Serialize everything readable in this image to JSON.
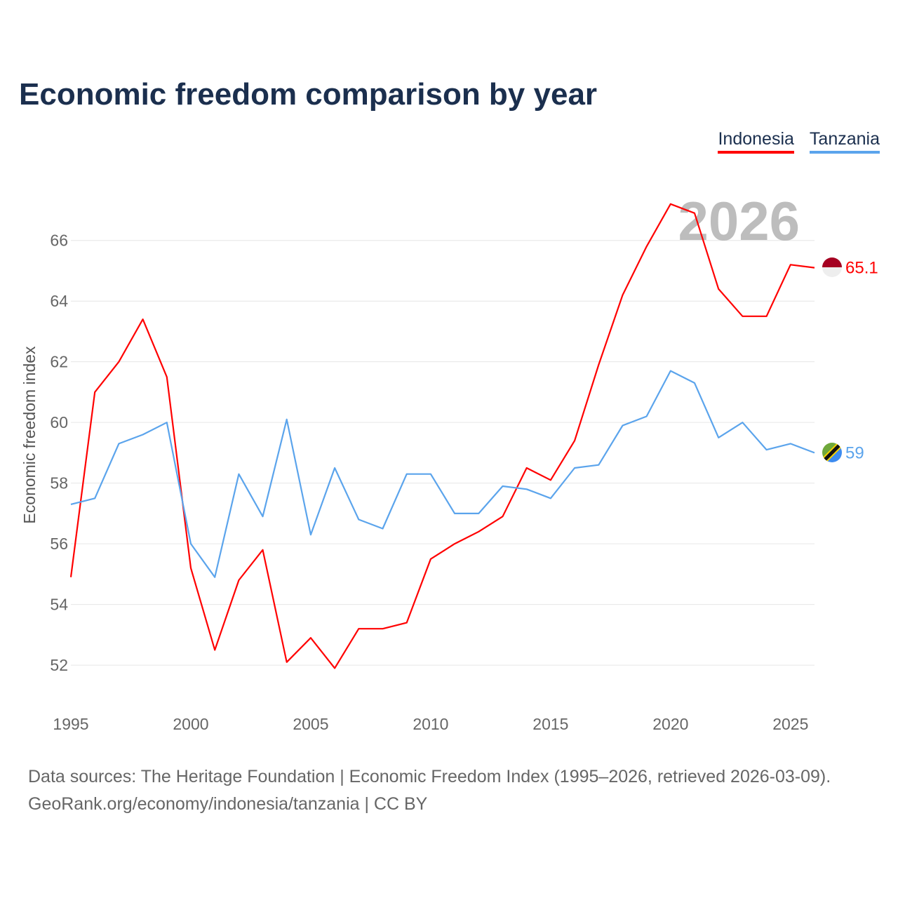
{
  "chart_data": {
    "type": "line",
    "title": "Economic freedom comparison by year",
    "xlabel": "",
    "ylabel": "Economic freedom index",
    "year_overlay": "2026",
    "x": [
      1995,
      1996,
      1997,
      1998,
      1999,
      2000,
      2001,
      2002,
      2003,
      2004,
      2005,
      2006,
      2007,
      2008,
      2009,
      2010,
      2011,
      2012,
      2013,
      2014,
      2015,
      2016,
      2017,
      2018,
      2019,
      2020,
      2021,
      2022,
      2023,
      2024,
      2025,
      2026
    ],
    "xticks": [
      1995,
      2000,
      2005,
      2010,
      2015,
      2020,
      2025
    ],
    "yticks": [
      52,
      54,
      56,
      58,
      60,
      62,
      64,
      66
    ],
    "xlim": [
      1995,
      2026
    ],
    "ylim": [
      50.8,
      67.45
    ],
    "grid": true,
    "legend_position": "top-right",
    "series": [
      {
        "name": "Indonesia",
        "color": "#ff0000",
        "end_label": "65.1",
        "values": [
          54.9,
          61.0,
          62.0,
          63.4,
          61.5,
          55.2,
          52.5,
          54.8,
          55.8,
          52.1,
          52.9,
          51.9,
          53.2,
          53.2,
          53.4,
          55.5,
          56.0,
          56.4,
          56.9,
          58.5,
          58.1,
          59.4,
          61.9,
          64.2,
          65.8,
          67.2,
          66.9,
          64.4,
          63.5,
          63.5,
          65.2,
          65.1
        ]
      },
      {
        "name": "Tanzania",
        "color": "#5ba4ec",
        "end_label": "59",
        "values": [
          57.3,
          57.5,
          59.3,
          59.6,
          60.0,
          56.0,
          54.9,
          58.3,
          56.9,
          60.1,
          56.3,
          58.5,
          56.8,
          56.5,
          58.3,
          58.3,
          57.0,
          57.0,
          57.9,
          57.8,
          57.5,
          58.5,
          58.6,
          59.9,
          60.2,
          61.7,
          61.3,
          59.5,
          60.0,
          59.1,
          59.3,
          59.0
        ]
      }
    ]
  },
  "source_lines": [
    "Data sources: The Heritage Foundation | Economic Freedom Index (1995–2026, retrieved 2026-03-09).",
    "GeoRank.org/economy/indonesia/tanzania | CC BY"
  ]
}
